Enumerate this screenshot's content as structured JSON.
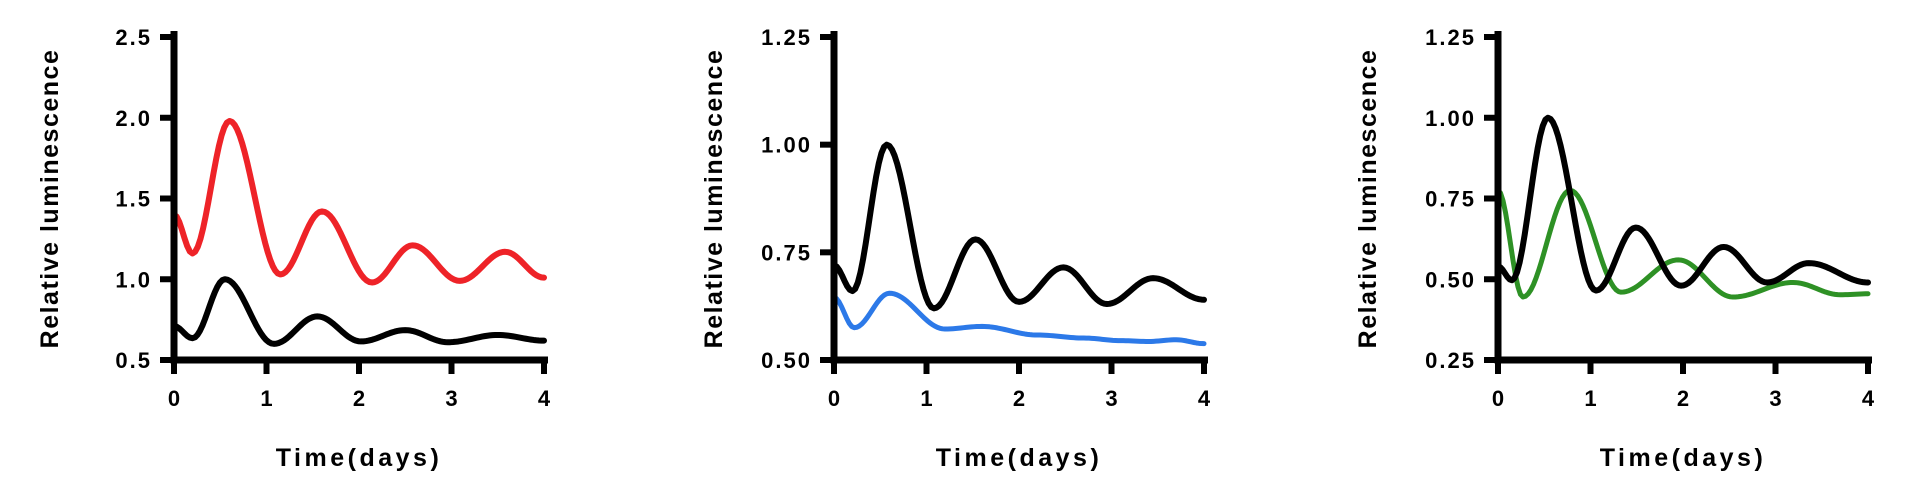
{
  "background": "#ffffff",
  "axis_color": "#000000",
  "text_color": "#000000",
  "chart_data": [
    {
      "type": "line",
      "title": "",
      "xlabel": "Time(days)",
      "ylabel": "Relative luminescence",
      "xlim": [
        0,
        4
      ],
      "ylim": [
        0.5,
        2.5
      ],
      "grid": false,
      "legend": "none",
      "xticks": {
        "values": [
          0,
          1,
          2,
          3,
          4
        ],
        "labels": [
          "0",
          "1",
          "2",
          "3",
          "4"
        ]
      },
      "yticks": {
        "values": [
          0.5,
          1.0,
          1.5,
          2.0,
          2.5
        ],
        "labels": [
          "0.5",
          "1.0",
          "1.5",
          "2.0",
          "2.5"
        ]
      },
      "series": [
        {
          "name": "red",
          "color": "#ee2328",
          "stroke_width": 6,
          "points": [
            [
              0,
              1.4
            ],
            [
              0.2,
              1.16
            ],
            [
              0.6,
              1.98
            ],
            [
              1.15,
              1.03
            ],
            [
              1.6,
              1.42
            ],
            [
              2.14,
              0.98
            ],
            [
              2.58,
              1.21
            ],
            [
              3.09,
              0.99
            ],
            [
              3.58,
              1.17
            ],
            [
              4,
              1.01
            ]
          ]
        },
        {
          "name": "black",
          "color": "#000000",
          "stroke_width": 6,
          "points": [
            [
              0,
              0.71
            ],
            [
              0.2,
              0.635
            ],
            [
              0.55,
              1.0
            ],
            [
              1.08,
              0.6
            ],
            [
              1.55,
              0.77
            ],
            [
              2.02,
              0.615
            ],
            [
              2.5,
              0.685
            ],
            [
              2.96,
              0.61
            ],
            [
              3.5,
              0.655
            ],
            [
              4,
              0.62
            ]
          ]
        }
      ]
    },
    {
      "type": "line",
      "title": "",
      "xlabel": "Time(days)",
      "ylabel": "Relative luminescence",
      "xlim": [
        0,
        4
      ],
      "ylim": [
        0.5,
        1.25
      ],
      "grid": false,
      "legend": "none",
      "xticks": {
        "values": [
          0,
          1,
          2,
          3,
          4
        ],
        "labels": [
          "0",
          "1",
          "2",
          "3",
          "4"
        ]
      },
      "yticks": {
        "values": [
          0.5,
          0.75,
          1.0,
          1.25
        ],
        "labels": [
          "0.50",
          "0.75",
          "1.00",
          "1.25"
        ]
      },
      "series": [
        {
          "name": "blue",
          "color": "#2c79e8",
          "stroke_width": 5,
          "points": [
            [
              0,
              0.645
            ],
            [
              0.22,
              0.575
            ],
            [
              0.6,
              0.655
            ],
            [
              1.2,
              0.572
            ],
            [
              1.6,
              0.578
            ],
            [
              2.2,
              0.558
            ],
            [
              2.7,
              0.551
            ],
            [
              3.1,
              0.545
            ],
            [
              3.4,
              0.543
            ],
            [
              3.7,
              0.547
            ],
            [
              4,
              0.538
            ]
          ]
        },
        {
          "name": "black",
          "color": "#000000",
          "stroke_width": 6,
          "points": [
            [
              0,
              0.72
            ],
            [
              0.2,
              0.66
            ],
            [
              0.57,
              1.0
            ],
            [
              1.08,
              0.62
            ],
            [
              1.53,
              0.78
            ],
            [
              2.0,
              0.635
            ],
            [
              2.48,
              0.715
            ],
            [
              2.95,
              0.63
            ],
            [
              3.45,
              0.69
            ],
            [
              4,
              0.64
            ]
          ]
        }
      ]
    },
    {
      "type": "line",
      "title": "",
      "xlabel": "Time(days)",
      "ylabel": "Relative luminescence",
      "xlim": [
        0,
        4
      ],
      "ylim": [
        0.25,
        1.25
      ],
      "grid": false,
      "legend": "none",
      "xticks": {
        "values": [
          0,
          1,
          2,
          3,
          4
        ],
        "labels": [
          "0",
          "1",
          "2",
          "3",
          "4"
        ]
      },
      "yticks": {
        "values": [
          0.25,
          0.5,
          0.75,
          1.0,
          1.25
        ],
        "labels": [
          "0.25",
          "0.50",
          "0.75",
          "1.00",
          "1.25"
        ]
      },
      "series": [
        {
          "name": "green",
          "color": "#2e9125",
          "stroke_width": 5,
          "points": [
            [
              0,
              0.775
            ],
            [
              0.27,
              0.445
            ],
            [
              0.78,
              0.775
            ],
            [
              1.33,
              0.46
            ],
            [
              1.95,
              0.56
            ],
            [
              2.54,
              0.445
            ],
            [
              3.19,
              0.49
            ],
            [
              3.7,
              0.452
            ],
            [
              4,
              0.455
            ]
          ]
        },
        {
          "name": "black",
          "color": "#000000",
          "stroke_width": 6,
          "points": [
            [
              0,
              0.54
            ],
            [
              0.15,
              0.497
            ],
            [
              0.54,
              1.0
            ],
            [
              1.06,
              0.465
            ],
            [
              1.49,
              0.66
            ],
            [
              1.98,
              0.48
            ],
            [
              2.44,
              0.6
            ],
            [
              2.91,
              0.49
            ],
            [
              3.36,
              0.55
            ],
            [
              4,
              0.49
            ]
          ]
        }
      ]
    }
  ]
}
